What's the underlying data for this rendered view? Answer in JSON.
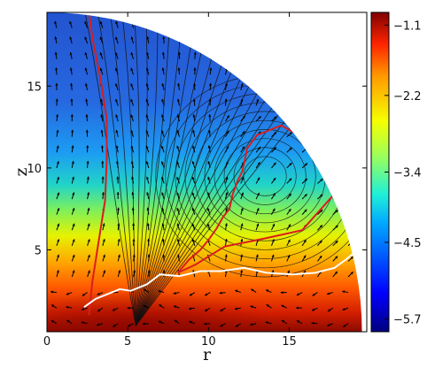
{
  "chart_data": {
    "type": "heatmap",
    "title": "",
    "xlabel": "r",
    "ylabel": "z",
    "xlim": [
      0,
      19.8
    ],
    "ylim": [
      0,
      19.5
    ],
    "domain_shape": "quarter-disk",
    "domain_radius": 19.5,
    "x_ticks": [
      {
        "value": 0,
        "label": "0"
      },
      {
        "value": 5,
        "label": "5"
      },
      {
        "value": 10,
        "label": "10"
      },
      {
        "value": 15,
        "label": "15"
      }
    ],
    "y_ticks": [
      {
        "value": 5,
        "label": "5"
      },
      {
        "value": 10,
        "label": "10"
      },
      {
        "value": 15,
        "label": "15"
      }
    ],
    "colorbar": {
      "colormap": "jet",
      "min": -5.9,
      "max": -0.9,
      "ticks": [
        {
          "value": -1.1,
          "label": "−1.1"
        },
        {
          "value": -2.2,
          "label": "−2.2"
        },
        {
          "value": -3.4,
          "label": "−3.4"
        },
        {
          "value": -4.5,
          "label": "−4.5"
        },
        {
          "value": -5.7,
          "label": "−5.7"
        }
      ]
    },
    "overlays": {
      "vector_field": true,
      "black_field_lines": true,
      "red_contours": 2,
      "white_contour": 1
    },
    "red_contours": [
      [
        [
          2.6,
          1.0
        ],
        [
          2.8,
          3.0
        ],
        [
          3.2,
          5.5
        ],
        [
          3.6,
          8.0
        ],
        [
          3.7,
          10.5
        ],
        [
          3.7,
          13.0
        ],
        [
          3.3,
          15.5
        ],
        [
          2.8,
          18.0
        ],
        [
          2.6,
          19.5
        ]
      ],
      [
        [
          8.1,
          3.6
        ],
        [
          9.2,
          4.1
        ],
        [
          11.0,
          5.2
        ],
        [
          13.5,
          5.7
        ],
        [
          15.8,
          6.2
        ],
        [
          17.6,
          8.2
        ],
        [
          18.1,
          8.6
        ],
        [
          16.8,
          10.5
        ],
        [
          15.4,
          12.1
        ],
        [
          14.5,
          12.6
        ],
        [
          13.0,
          12.0
        ],
        [
          12.4,
          11.2
        ],
        [
          12.1,
          9.8
        ],
        [
          11.8,
          9.2
        ],
        [
          11.5,
          8.4
        ],
        [
          11.3,
          7.5
        ],
        [
          10.9,
          7.0
        ],
        [
          10.5,
          6.3
        ],
        [
          10.0,
          5.6
        ],
        [
          9.5,
          5.0
        ],
        [
          8.8,
          4.4
        ],
        [
          8.1,
          3.6
        ]
      ]
    ],
    "white_contour": [
      [
        2.3,
        1.5
      ],
      [
        3.0,
        2.0
      ],
      [
        4.5,
        2.6
      ],
      [
        5.2,
        2.5
      ],
      [
        6.2,
        2.9
      ],
      [
        7.0,
        3.5
      ],
      [
        8.2,
        3.4
      ],
      [
        9.5,
        3.7
      ],
      [
        10.8,
        3.7
      ],
      [
        12.2,
        3.9
      ],
      [
        13.6,
        3.6
      ],
      [
        15.2,
        3.5
      ],
      [
        16.6,
        3.6
      ],
      [
        17.8,
        3.9
      ],
      [
        18.5,
        4.4
      ],
      [
        19.5,
        5.2
      ]
    ]
  }
}
